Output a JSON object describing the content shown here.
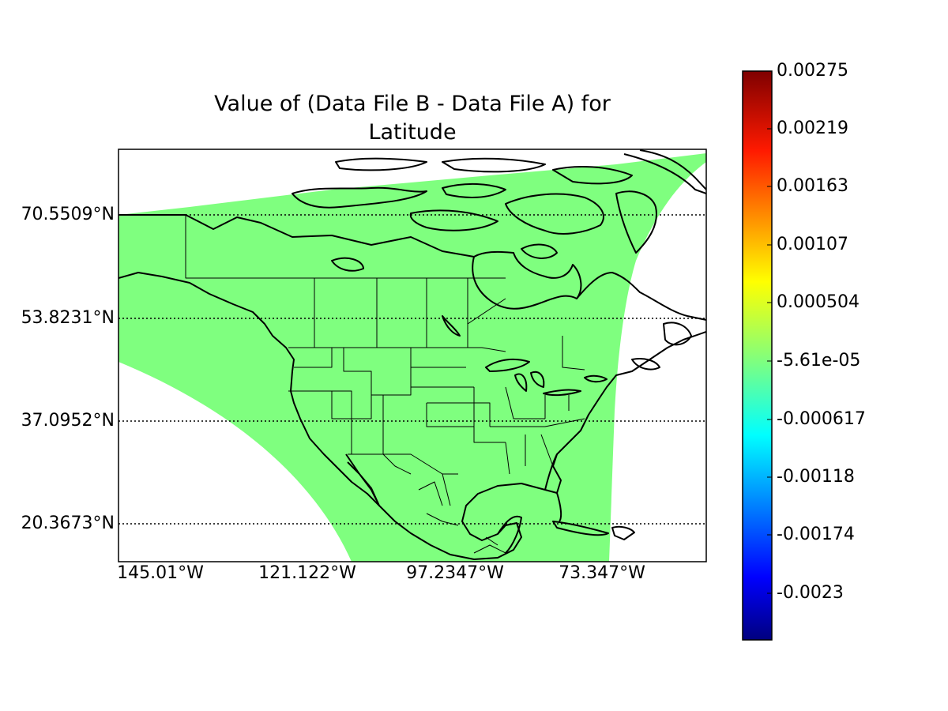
{
  "chart_data": {
    "type": "map",
    "title_lines": [
      "Value of (Data File B - Data File A) for",
      "Latitude"
    ],
    "latitude_ticks": [
      "70.5509°N",
      "53.8231°N",
      "37.0952°N",
      "20.3673°N"
    ],
    "longitude_ticks": [
      "145.01°W",
      "121.122°W",
      "97.2347°W",
      "73.347°W"
    ],
    "colorbar": {
      "tick_labels": [
        "0.00275",
        "0.00219",
        "0.00163",
        "0.00107",
        "0.000504",
        "-5.61e-05",
        "-0.000617",
        "-0.00118",
        "-0.00174",
        "-0.0023"
      ],
      "range": [
        -0.00275,
        0.00275
      ],
      "colormap": "jet",
      "colors": [
        "#00007f",
        "#0000ff",
        "#007fff",
        "#00ffff",
        "#7fff7f",
        "#ffff00",
        "#ff7f00",
        "#ff0000",
        "#7f0000"
      ]
    },
    "field_value": -5.61e-05,
    "field_color": "#7fff7f",
    "grid": "dotted",
    "map_features": [
      "coastlines",
      "country-borders",
      "state-borders",
      "lakes"
    ]
  }
}
